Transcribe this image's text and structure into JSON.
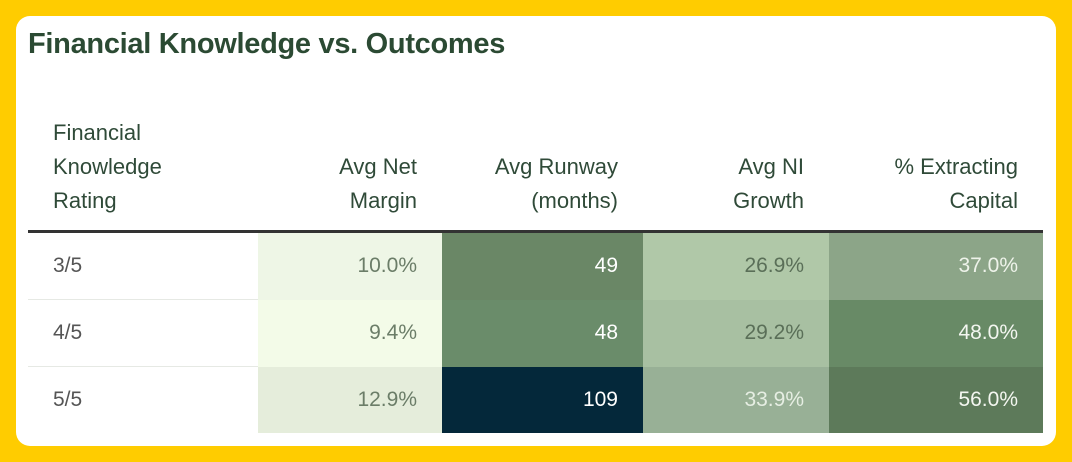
{
  "chart_data": {
    "type": "heatmap",
    "title": "Financial Knowledge vs. Outcomes",
    "columns": [
      "Financial Knowledge Rating",
      "Avg Net Margin",
      "Avg Runway (months)",
      "Avg NI Growth",
      "% Extracting Capital"
    ],
    "header_lines": [
      [
        "Financial",
        "Knowledge",
        "Rating"
      ],
      [
        "Avg Net",
        "Margin"
      ],
      [
        "Avg Runway",
        "(months)"
      ],
      [
        "Avg NI",
        "Growth"
      ],
      [
        "% Extracting",
        "Capital"
      ]
    ],
    "rows": [
      {
        "label": "3/5",
        "values": [
          "10.0%",
          "49",
          "26.9%",
          "37.0%"
        ]
      },
      {
        "label": "4/5",
        "values": [
          "9.4%",
          "48",
          "29.2%",
          "48.0%"
        ]
      },
      {
        "label": "5/5",
        "values": [
          "12.9%",
          "109",
          "33.9%",
          "56.0%"
        ]
      }
    ],
    "cell_colors": [
      [
        "#eef6e6",
        "#6a8766",
        "#b0c8a8",
        "#8ca588"
      ],
      [
        "#f3fbe8",
        "#6a8c6a",
        "#a8c0a2",
        "#688a66"
      ],
      [
        "#e5eddb",
        "#04283a",
        "#98b096",
        "#5d7a5a"
      ]
    ],
    "text_colors": [
      [
        "#6b7d68",
        "#ffffff",
        "#5a6f58",
        "#eef3ea"
      ],
      [
        "#6b7d68",
        "#ffffff",
        "#5a6f58",
        "#f3f6f0"
      ],
      [
        "#6b7d68",
        "#ffffff",
        "#e6eee3",
        "#f3f6f0"
      ]
    ]
  }
}
